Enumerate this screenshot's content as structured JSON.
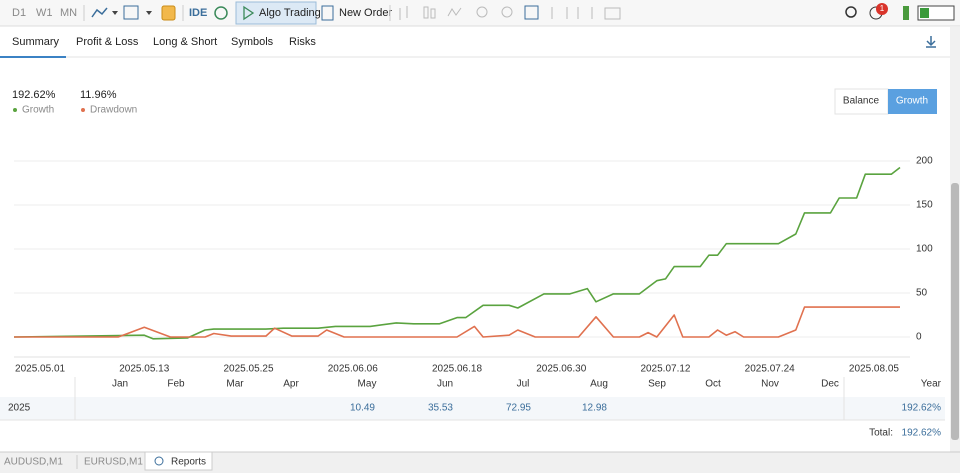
{
  "toolbar": {
    "periods": [
      "D1",
      "W1",
      "MN"
    ],
    "ide": "IDE",
    "algo_trading": "Algo Trading",
    "new_order": "New Order",
    "notifications": "1"
  },
  "tabs": [
    "Summary",
    "Profit & Loss",
    "Long & Short",
    "Symbols",
    "Risks"
  ],
  "stats": [
    {
      "value": "192.62%"
    },
    {
      "value": "11.96%"
    }
  ],
  "toggle": [
    "Balance",
    "Growth"
  ],
  "chart_data": {
    "type": "line",
    "series": [
      {
        "name": "Growth",
        "color": "#5aa33f",
        "x": [
          "2025.04.28",
          "2025.05.13",
          "2025.05.14",
          "2025.05.18",
          "2025.05.20",
          "2025.05.21",
          "2025.05.27",
          "2025.05.29",
          "2025.06.02",
          "2025.06.04",
          "2025.06.08",
          "2025.06.11",
          "2025.06.13",
          "2025.06.16",
          "2025.06.18",
          "2025.06.19",
          "2025.06.21",
          "2025.06.24",
          "2025.06.25",
          "2025.06.28",
          "2025.07.01",
          "2025.07.03",
          "2025.07.04",
          "2025.07.06",
          "2025.07.09",
          "2025.07.11",
          "2025.07.12",
          "2025.07.13",
          "2025.07.16",
          "2025.07.17",
          "2025.07.18",
          "2025.07.19",
          "2025.07.25",
          "2025.07.27",
          "2025.07.28",
          "2025.07.31",
          "2025.08.01",
          "2025.08.03",
          "2025.08.04",
          "2025.08.07",
          "2025.08.08"
        ],
        "values": [
          0,
          2,
          -2,
          -1,
          8,
          9,
          9,
          10,
          10,
          12,
          12,
          16,
          15,
          15,
          22,
          22,
          36,
          36,
          33,
          49,
          49,
          55,
          40,
          49,
          49,
          64,
          66,
          80,
          80,
          93,
          93,
          106,
          106,
          117,
          141,
          141,
          158,
          158,
          185,
          185,
          192.62
        ]
      },
      {
        "name": "Drawdown",
        "color": "#e0714f",
        "x": [
          "2025.04.28",
          "2025.05.10",
          "2025.05.13",
          "2025.05.16",
          "2025.05.20",
          "2025.05.21",
          "2025.05.23",
          "2025.05.27",
          "2025.05.28",
          "2025.05.30",
          "2025.06.02",
          "2025.06.03",
          "2025.06.05",
          "2025.06.18",
          "2025.06.20",
          "2025.06.21",
          "2025.06.24",
          "2025.06.25",
          "2025.06.27",
          "2025.07.02",
          "2025.07.04",
          "2025.07.06",
          "2025.07.09",
          "2025.07.10",
          "2025.07.11",
          "2025.07.13",
          "2025.07.14",
          "2025.07.17",
          "2025.07.18",
          "2025.07.19",
          "2025.07.20",
          "2025.07.21",
          "2025.07.25",
          "2025.07.27",
          "2025.07.28",
          "2025.08.08"
        ],
        "values": [
          0,
          0,
          11,
          0,
          0,
          4,
          1,
          1,
          10,
          1,
          1,
          8,
          0,
          0,
          12,
          0,
          2,
          8,
          0,
          0,
          23,
          0,
          0,
          5,
          0,
          25,
          0,
          0,
          8,
          2,
          6,
          0,
          0,
          8,
          34,
          34
        ]
      }
    ],
    "xlim": [
      "2025.04.28",
      "2025.08.08"
    ],
    "xticks": [
      "2025.05.01",
      "2025.05.13",
      "2025.05.25",
      "2025.06.06",
      "2025.06.18",
      "2025.06.30",
      "2025.07.12",
      "2025.07.24",
      "2025.08.05"
    ],
    "ylim": [
      -20,
      220
    ],
    "yticks": [
      0,
      50,
      100,
      150,
      200
    ],
    "grid": true
  },
  "table": {
    "columns": [
      "Jan",
      "Feb",
      "Mar",
      "Apr",
      "May",
      "Jun",
      "Jul",
      "Aug",
      "Sep",
      "Oct",
      "Nov",
      "Dec",
      "Year"
    ],
    "rows": [
      {
        "label": "2025",
        "months": [
          null,
          null,
          null,
          null,
          10.49,
          35.53,
          72.95,
          12.98,
          null,
          null,
          null,
          null
        ],
        "year": "192.62%"
      }
    ],
    "total_label": "Total:",
    "total": "192.62%"
  },
  "bottom_tabs": [
    "AUDUSD,M1",
    "EURUSD,M1",
    "Reports"
  ]
}
